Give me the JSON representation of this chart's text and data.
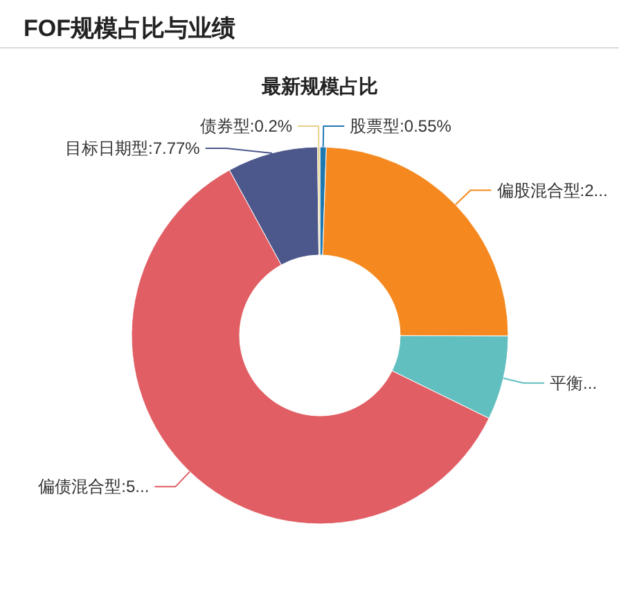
{
  "chart_data": {
    "type": "donut",
    "title": "FOF规模占比与业绩",
    "subtitle": "最新规模占比",
    "categories": [
      "股票型:0.55%",
      "偏股混合型:2...",
      "平衡...",
      "偏债混合型:5...",
      "目标日期型:7.77%",
      "债券型:0.2%"
    ],
    "values": [
      0.55,
      24.5,
      7.2,
      59.78,
      7.77,
      0.2
    ],
    "colors": [
      "#1f78b0",
      "#f5891f",
      "#62bfc0",
      "#e15f64",
      "#4c578c",
      "#e8d08a"
    ]
  }
}
